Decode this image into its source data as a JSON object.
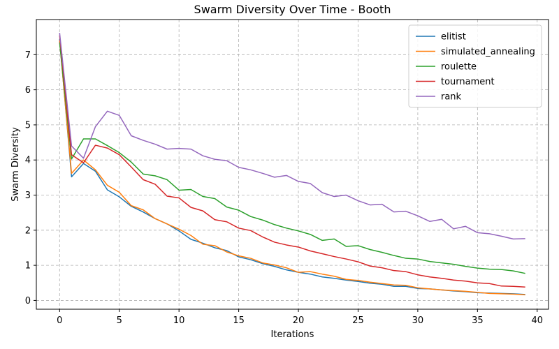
{
  "chart_data": {
    "type": "line",
    "title": "Swarm Diversity Over Time - Booth",
    "xlabel": "Iterations",
    "ylabel": "Swarm Diversity",
    "xlim": [
      -1.95,
      40.95
    ],
    "ylim": [
      -0.25,
      8.0
    ],
    "xticks": [
      0,
      5,
      10,
      15,
      20,
      25,
      30,
      35,
      40
    ],
    "yticks": [
      0,
      1,
      2,
      3,
      4,
      5,
      6,
      7
    ],
    "grid": true,
    "legend_position": "top-right",
    "x": [
      0,
      1,
      2,
      3,
      4,
      5,
      6,
      7,
      8,
      9,
      10,
      11,
      12,
      13,
      14,
      15,
      16,
      17,
      18,
      19,
      20,
      21,
      22,
      23,
      24,
      25,
      26,
      27,
      28,
      29,
      30,
      31,
      32,
      33,
      34,
      35,
      36,
      37,
      38,
      39
    ],
    "series": [
      {
        "name": "elitist",
        "color": "#1f77b4",
        "values": [
          7.45,
          3.52,
          3.9,
          3.68,
          3.15,
          2.95,
          2.68,
          2.52,
          2.33,
          2.18,
          1.98,
          1.74,
          1.63,
          1.5,
          1.42,
          1.24,
          1.16,
          1.05,
          0.97,
          0.87,
          0.8,
          0.75,
          0.67,
          0.63,
          0.58,
          0.54,
          0.49,
          0.46,
          0.4,
          0.4,
          0.34,
          0.33,
          0.3,
          0.27,
          0.25,
          0.22,
          0.21,
          0.2,
          0.19,
          0.17
        ]
      },
      {
        "name": "simulated_annealing",
        "color": "#ff7f0e",
        "values": [
          7.4,
          3.62,
          4.0,
          3.72,
          3.28,
          3.08,
          2.7,
          2.58,
          2.33,
          2.18,
          2.03,
          1.85,
          1.6,
          1.56,
          1.38,
          1.27,
          1.2,
          1.07,
          1.01,
          0.93,
          0.8,
          0.82,
          0.75,
          0.69,
          0.6,
          0.57,
          0.52,
          0.48,
          0.44,
          0.43,
          0.36,
          0.33,
          0.3,
          0.28,
          0.26,
          0.23,
          0.2,
          0.19,
          0.18,
          0.16
        ]
      },
      {
        "name": "roulette",
        "color": "#2ca02c",
        "values": [
          7.35,
          4.03,
          4.6,
          4.6,
          4.41,
          4.21,
          3.94,
          3.6,
          3.55,
          3.44,
          3.14,
          3.16,
          2.96,
          2.9,
          2.66,
          2.57,
          2.39,
          2.29,
          2.16,
          2.06,
          1.98,
          1.88,
          1.71,
          1.75,
          1.54,
          1.56,
          1.45,
          1.37,
          1.28,
          1.2,
          1.18,
          1.11,
          1.07,
          1.03,
          0.97,
          0.92,
          0.89,
          0.88,
          0.84,
          0.77
        ]
      },
      {
        "name": "tournament",
        "color": "#d62728",
        "values": [
          7.55,
          4.15,
          3.92,
          4.42,
          4.34,
          4.15,
          3.8,
          3.44,
          3.31,
          2.97,
          2.92,
          2.65,
          2.55,
          2.3,
          2.24,
          2.06,
          1.99,
          1.81,
          1.66,
          1.58,
          1.52,
          1.41,
          1.33,
          1.25,
          1.18,
          1.1,
          0.98,
          0.93,
          0.85,
          0.82,
          0.73,
          0.67,
          0.63,
          0.58,
          0.55,
          0.5,
          0.48,
          0.41,
          0.4,
          0.38
        ]
      },
      {
        "name": "rank",
        "color": "#9467bd",
        "values": [
          7.62,
          4.4,
          4.05,
          4.95,
          5.39,
          5.27,
          4.69,
          4.56,
          4.45,
          4.31,
          4.33,
          4.31,
          4.12,
          4.02,
          3.98,
          3.79,
          3.72,
          3.62,
          3.51,
          3.56,
          3.39,
          3.33,
          3.07,
          2.96,
          3.0,
          2.84,
          2.72,
          2.74,
          2.52,
          2.54,
          2.41,
          2.25,
          2.31,
          2.04,
          2.11,
          1.93,
          1.9,
          1.83,
          1.75,
          1.76
        ]
      }
    ]
  }
}
